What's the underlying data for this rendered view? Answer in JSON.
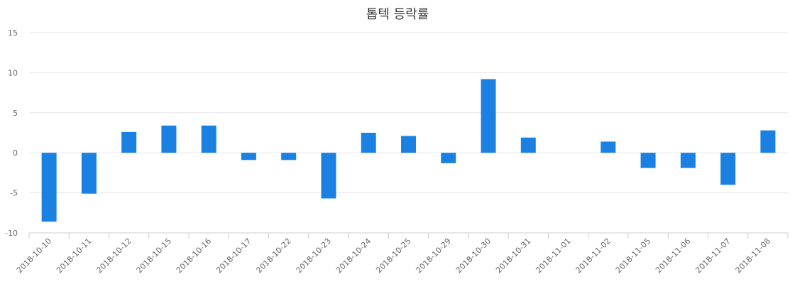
{
  "chart_data": {
    "type": "bar",
    "title": "톱텍 등락률",
    "categories": [
      "2018-10-10",
      "2018-10-11",
      "2018-10-12",
      "2018-10-15",
      "2018-10-16",
      "2018-10-17",
      "2018-10-22",
      "2018-10-23",
      "2018-10-24",
      "2018-10-25",
      "2018-10-29",
      "2018-10-30",
      "2018-10-31",
      "2018-11-01",
      "2018-11-02",
      "2018-11-05",
      "2018-11-06",
      "2018-11-07",
      "2018-11-08"
    ],
    "values": [
      -8.6,
      -5.1,
      2.6,
      3.4,
      3.4,
      -0.9,
      -0.9,
      -5.7,
      2.5,
      2.1,
      -1.3,
      9.2,
      1.9,
      0,
      1.4,
      -1.9,
      -1.9,
      -4.0,
      2.8
    ],
    "yticks": [
      "15",
      "10",
      "5",
      "0",
      "-5",
      "-10"
    ],
    "ylim": [
      -10,
      15
    ],
    "grid": true,
    "bar_color": "#1a81e3",
    "grid_color": "#e6e6e6"
  }
}
